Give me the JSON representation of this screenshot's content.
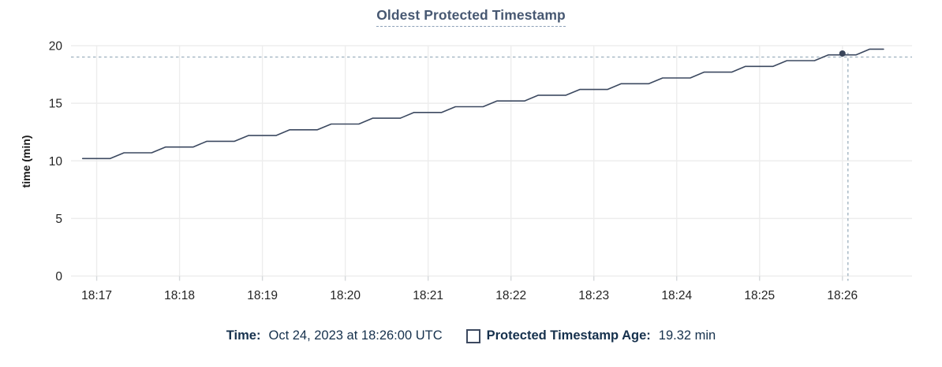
{
  "chart": {
    "title": "Oldest Protected Timestamp",
    "ylabel": "time (min)"
  },
  "legend": {
    "time_label": "Time:",
    "time_value": "Oct 24, 2023 at 18:26:00 UTC",
    "series_label": "Protected Timestamp Age:",
    "series_value": "19.32 min"
  },
  "colors": {
    "line": "#3c4960",
    "dot": "#39455a",
    "title_text": "#475872",
    "legend_text": "#16314d",
    "grid": "#ededed",
    "axis_tick": "#d5d8db",
    "crosshair": "#a3b5c2",
    "tick_text": "#242424"
  },
  "chart_data": {
    "type": "line",
    "title": "Oldest Protected Timestamp",
    "xlabel": "",
    "ylabel": "time (min)",
    "grid": true,
    "legend_position": "bottom",
    "y_ticks": [
      0,
      5,
      10,
      15,
      20
    ],
    "ylim": [
      0,
      20
    ],
    "x_tick_labels": [
      "18:17",
      "18:18",
      "18:19",
      "18:20",
      "18:21",
      "18:22",
      "18:23",
      "18:24",
      "18:25",
      "18:26"
    ],
    "x_tick_minutes": [
      17,
      18,
      19,
      20,
      21,
      22,
      23,
      24,
      25,
      26
    ],
    "xlim_minutes": [
      16.69,
      26.84
    ],
    "series": [
      {
        "name": "Protected Timestamp Age",
        "unit": "min",
        "start_min": 16.83,
        "interval_sec": 10,
        "values": [
          10.2,
          10.2,
          10.2,
          10.7,
          10.7,
          10.7,
          11.2,
          11.2,
          11.2,
          11.7,
          11.7,
          11.7,
          12.2,
          12.2,
          12.2,
          12.7,
          12.7,
          12.7,
          13.2,
          13.2,
          13.2,
          13.7,
          13.7,
          13.7,
          14.2,
          14.2,
          14.2,
          14.7,
          14.7,
          14.7,
          15.2,
          15.2,
          15.2,
          15.7,
          15.7,
          15.7,
          16.2,
          16.2,
          16.2,
          16.7,
          16.7,
          16.7,
          17.2,
          17.2,
          17.2,
          17.7,
          17.7,
          17.7,
          18.2,
          18.2,
          18.2,
          18.7,
          18.7,
          18.7,
          19.2,
          19.2,
          19.2,
          19.7,
          19.7
        ]
      }
    ],
    "hover_point": {
      "time": "18:26:00",
      "time_min": 26.0,
      "value": 19.32
    }
  }
}
